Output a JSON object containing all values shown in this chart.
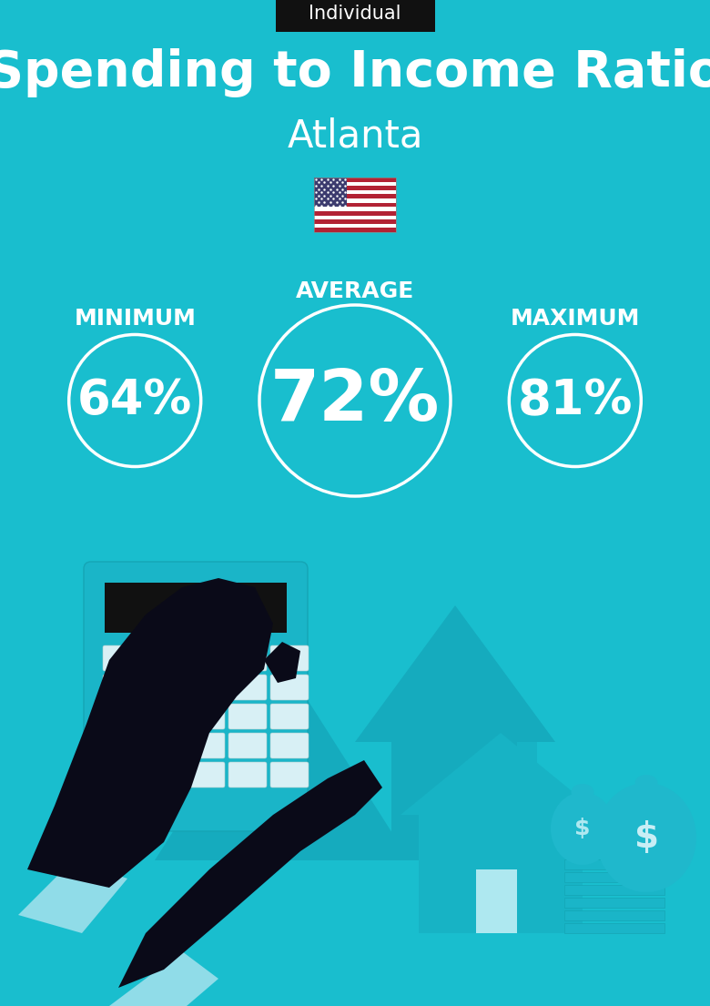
{
  "bg_color": "#19BECE",
  "title": "Spending to Income Ratio",
  "subtitle": "Atlanta",
  "badge_text": "Individual",
  "badge_bg": "#111111",
  "badge_text_color": "#ffffff",
  "title_color": "#ffffff",
  "subtitle_color": "#ffffff",
  "min_label": "MINIMUM",
  "avg_label": "AVERAGE",
  "max_label": "MAXIMUM",
  "min_value": "64%",
  "avg_value": "72%",
  "max_value": "81%",
  "label_color": "#ffffff",
  "value_color": "#ffffff",
  "circle_color": "#ffffff",
  "fig_width": 7.8,
  "fig_height": 11.05,
  "dpi": 100,
  "title_fontsize": 40,
  "subtitle_fontsize": 30,
  "badge_fontsize": 15,
  "label_fontsize": 18,
  "min_value_fontsize": 38,
  "avg_value_fontsize": 56,
  "max_value_fontsize": 38,
  "arrow_color": "#15ABBE",
  "house_color": "#17B3C5",
  "house_light": "#aee8f0",
  "hand_color": "#0a0a18",
  "calc_color": "#1ab5c8",
  "calc_screen": "#111111",
  "btn_color": "#d8f0f5",
  "bag_color": "#1fb8cc",
  "cuff_color": "#90dce8",
  "money_stack_color": "#1ab5c8"
}
